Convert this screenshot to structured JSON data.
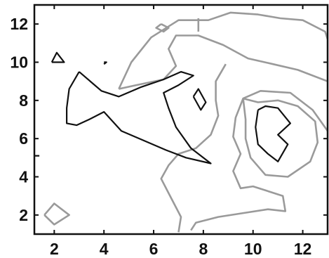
{
  "chart_data": {
    "type": "contour",
    "title": "",
    "xlabel": "",
    "ylabel": "",
    "xlim": [
      1.2,
      13
    ],
    "ylim": [
      1.0,
      13
    ],
    "grid": false,
    "legend": "none",
    "x_ticks": [
      2,
      4,
      6,
      8,
      10,
      12
    ],
    "y_ticks": [
      2,
      4,
      6,
      8,
      10,
      12
    ],
    "x_tick_labels": [
      "2",
      "4",
      "6",
      "8",
      "10",
      "12"
    ],
    "y_tick_labels": [
      "2",
      "4",
      "6",
      "8",
      "10",
      "12"
    ],
    "colors": {
      "low_level": "#9a9a9a",
      "high_level": "#111111",
      "axes": "#111111"
    },
    "contours": [
      {
        "level": "low",
        "points": [
          [
            4.6,
            8.6
          ],
          [
            5.1,
            10
          ],
          [
            5.9,
            11.3
          ],
          [
            7,
            12.2
          ],
          [
            8.2,
            12.2
          ],
          [
            9.1,
            12.6
          ],
          [
            10.2,
            12.5
          ],
          [
            11.1,
            12.3
          ],
          [
            12,
            12.2
          ],
          [
            12.9,
            11.6
          ],
          [
            13,
            11.2
          ]
        ]
      },
      {
        "level": "low",
        "points": [
          [
            4.6,
            8.6
          ],
          [
            5.3,
            8.8
          ],
          [
            6.4,
            9.1
          ],
          [
            6.9,
            9.8
          ],
          [
            6.6,
            10.7
          ],
          [
            6.9,
            11.4
          ],
          [
            7.8,
            11.4
          ],
          [
            8.8,
            10.9
          ],
          [
            9.8,
            10.2
          ],
          [
            10.8,
            9.9
          ],
          [
            11.8,
            9.6
          ],
          [
            13,
            9
          ]
        ]
      },
      {
        "level": "low",
        "points": [
          [
            6.3,
            12
          ],
          [
            6.6,
            11.8
          ],
          [
            6.4,
            11.6
          ],
          [
            6.1,
            11.8
          ],
          [
            6.3,
            12
          ]
        ]
      },
      {
        "level": "low",
        "points": [
          [
            7.8,
            12.3
          ],
          [
            7.8,
            11.6
          ]
        ]
      },
      {
        "level": "low",
        "points": [
          [
            8.9,
            9.9
          ],
          [
            8.5,
            9
          ],
          [
            8.5,
            8
          ],
          [
            8.6,
            7.2
          ],
          [
            8.3,
            6.2
          ],
          [
            7.7,
            5.5
          ],
          [
            7,
            5.2
          ],
          [
            6.6,
            4.6
          ],
          [
            6.3,
            3.9
          ],
          [
            6.7,
            2.9
          ],
          [
            7.1,
            1.9
          ],
          [
            7,
            1.1
          ]
        ]
      },
      {
        "level": "low",
        "points": [
          [
            7.5,
            1.2
          ],
          [
            7.7,
            1.6
          ],
          [
            8.6,
            1.9
          ],
          [
            9.6,
            2.1
          ],
          [
            10.6,
            2.3
          ],
          [
            11.3,
            2.2
          ],
          [
            11.2,
            3
          ],
          [
            10,
            3.5
          ],
          [
            9.5,
            3.4
          ],
          [
            9.2,
            4.3
          ],
          [
            9.5,
            5.2
          ],
          [
            9.2,
            6.1
          ],
          [
            9.3,
            7.1
          ],
          [
            9.6,
            8.1
          ],
          [
            10.3,
            8.5
          ],
          [
            11.5,
            8.4
          ],
          [
            12.4,
            7.5
          ],
          [
            13,
            6.4
          ]
        ]
      },
      {
        "level": "low",
        "points": [
          [
            9.6,
            8.1
          ],
          [
            9.7,
            7
          ],
          [
            9.7,
            6
          ],
          [
            9.9,
            5
          ],
          [
            10.5,
            4.1
          ],
          [
            11.4,
            4
          ],
          [
            12.3,
            4.8
          ],
          [
            12.6,
            5.8
          ],
          [
            12.5,
            6.9
          ],
          [
            11.8,
            7.7
          ],
          [
            11,
            8
          ],
          [
            10.2,
            7.9
          ],
          [
            9.6,
            8.1
          ]
        ]
      },
      {
        "level": "low",
        "points": [
          [
            1.6,
            2
          ],
          [
            2,
            2.6
          ],
          [
            2.6,
            2
          ],
          [
            2,
            1.5
          ],
          [
            1.6,
            2
          ]
        ]
      },
      {
        "level": "high",
        "points": [
          [
            3,
            9.5
          ],
          [
            2.6,
            8.6
          ],
          [
            2.5,
            7.6
          ],
          [
            2.5,
            6.8
          ],
          [
            2.9,
            6.7
          ],
          [
            3.4,
            7
          ],
          [
            4,
            7.4
          ],
          [
            4.7,
            6.4
          ],
          [
            5.6,
            5.9
          ],
          [
            6.5,
            5.4
          ],
          [
            7.3,
            5
          ],
          [
            8.3,
            4.7
          ],
          [
            7.5,
            5.5
          ],
          [
            6.9,
            6.6
          ],
          [
            6.6,
            7.6
          ],
          [
            6.4,
            8.4
          ],
          [
            7,
            8.8
          ],
          [
            7.6,
            9.3
          ],
          [
            7.1,
            9.5
          ],
          [
            6.4,
            9.1
          ],
          [
            5.5,
            8.7
          ],
          [
            4.6,
            8.2
          ],
          [
            3.9,
            8.5
          ],
          [
            3,
            9.5
          ]
        ]
      },
      {
        "level": "high",
        "points": [
          [
            7.6,
            8.2
          ],
          [
            7.8,
            8.6
          ],
          [
            8.1,
            7.9
          ],
          [
            7.9,
            7.5
          ],
          [
            7.6,
            8.2
          ]
        ]
      },
      {
        "level": "high",
        "points": [
          [
            1.9,
            10
          ],
          [
            2.1,
            10.5
          ],
          [
            2.4,
            10
          ],
          [
            1.9,
            10
          ]
        ]
      },
      {
        "level": "high",
        "points": [
          [
            4,
            10
          ],
          [
            4.1,
            10
          ],
          [
            4,
            9.9
          ]
        ]
      },
      {
        "level": "high",
        "points": [
          [
            1,
            5.1
          ],
          [
            1.4,
            5.1
          ]
        ]
      },
      {
        "level": "high",
        "points": [
          [
            10.2,
            7.5
          ],
          [
            10.5,
            7.7
          ],
          [
            11,
            7.6
          ],
          [
            11.5,
            6.8
          ],
          [
            11,
            6.2
          ],
          [
            11.4,
            5.7
          ],
          [
            11,
            4.8
          ],
          [
            10.6,
            5.2
          ],
          [
            10.2,
            5.7
          ],
          [
            10.1,
            6.6
          ],
          [
            10.2,
            7.5
          ]
        ]
      }
    ]
  }
}
